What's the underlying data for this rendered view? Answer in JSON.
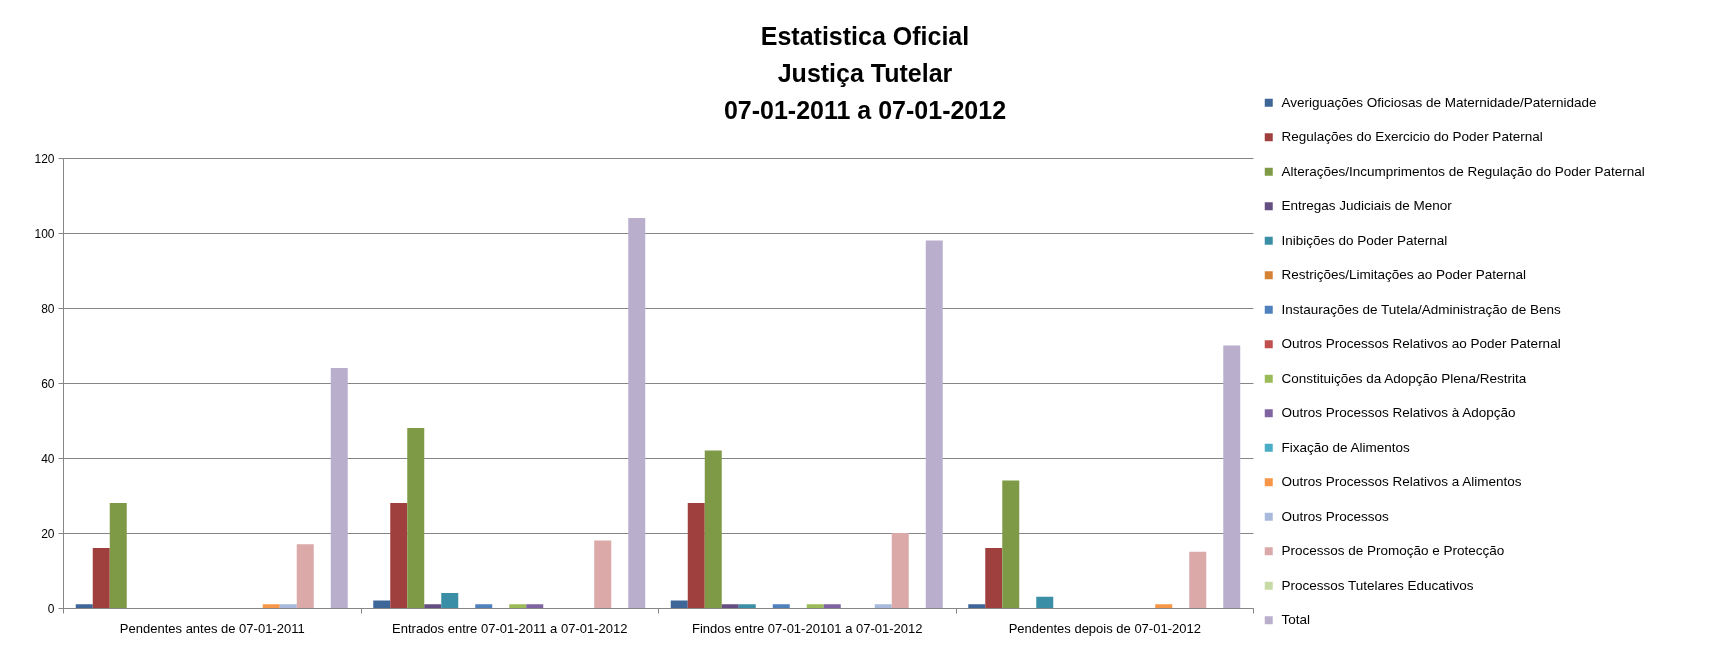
{
  "chart_data": {
    "type": "bar",
    "title": "Estatistica Oficial\nJustiça Tutelar\n07-01-2011 a 07-01-2012",
    "categories": [
      "Pendentes antes de 07-01-2011",
      "Entrados entre 07-01-2011 a 07-01-2012",
      "Findos entre 07-01-20101 a 07-01-2012",
      "Pendentes depois de 07-01-2012"
    ],
    "series": [
      {
        "name": "Averiguações Oficiosas de Maternidade/Paternidade",
        "color": "#3e6699",
        "values": [
          1,
          2,
          2,
          1
        ]
      },
      {
        "name": "Regulações do Exercicio do Poder Paternal",
        "color": "#a0403e",
        "values": [
          16,
          28,
          28,
          16
        ]
      },
      {
        "name": "Alterações/Incumprimentos de Regulação do Poder Paternal",
        "color": "#7f9a46",
        "values": [
          28,
          48,
          42,
          34
        ]
      },
      {
        "name": "Entregas Judiciais de Menor",
        "color": "#654f82",
        "values": [
          0,
          1,
          1,
          0
        ]
      },
      {
        "name": "Inibições do Poder Paternal",
        "color": "#3a8fa6",
        "values": [
          0,
          4,
          1,
          3
        ]
      },
      {
        "name": "Restrições/Limitações ao Poder Paternal",
        "color": "#d48236",
        "values": [
          0,
          0,
          0,
          0
        ]
      },
      {
        "name": "Instaurações de Tutela/Administração de Bens",
        "color": "#4f81bd",
        "values": [
          0,
          1,
          1,
          0
        ]
      },
      {
        "name": "Outros Processos Relativos ao Poder Paternal",
        "color": "#c0504d",
        "values": [
          0,
          0,
          0,
          0
        ]
      },
      {
        "name": "Constituições da Adopção Plena/Restrita",
        "color": "#9bbb59",
        "values": [
          0,
          1,
          1,
          0
        ]
      },
      {
        "name": "Outros Processos Relativos à Adopção",
        "color": "#8064a2",
        "values": [
          0,
          1,
          1,
          0
        ]
      },
      {
        "name": "Fixação de Alimentos",
        "color": "#4bacc6",
        "values": [
          0,
          0,
          0,
          0
        ]
      },
      {
        "name": "Outros Processos Relativos a Alimentos",
        "color": "#f79646",
        "values": [
          1,
          0,
          0,
          1
        ]
      },
      {
        "name": "Outros Processos",
        "color": "#a8badb",
        "values": [
          1,
          0,
          1,
          0
        ]
      },
      {
        "name": "Processos de Promoção e Protecção",
        "color": "#dba9a8",
        "values": [
          17,
          18,
          20,
          15
        ]
      },
      {
        "name": "Processos Tutelares Educativos",
        "color": "#c7daa5",
        "values": [
          0,
          0,
          0,
          0
        ]
      },
      {
        "name": "Total",
        "color": "#b9afcd",
        "values": [
          64,
          104,
          98,
          70
        ]
      }
    ],
    "ylim": [
      0,
      120
    ],
    "yticks": [
      0,
      20,
      40,
      60,
      80,
      100,
      120
    ],
    "grid": "y",
    "legend": "right"
  }
}
